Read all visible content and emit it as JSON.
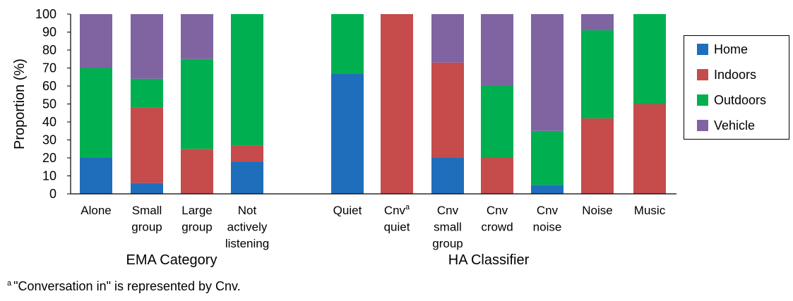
{
  "colors": {
    "Home": "#1f6ebc",
    "Indoors": "#c64b4b",
    "Outdoors": "#00b050",
    "Vehicle": "#8064a2"
  },
  "footnote": {
    "marker": "a",
    "text": "\"Conversation in\" is represented by Cnv."
  },
  "chart_data": {
    "type": "bar",
    "stacked": true,
    "ylabel": "Proportion (%)",
    "ylim": [
      0,
      100
    ],
    "yticks": [
      0,
      10,
      20,
      30,
      40,
      50,
      60,
      70,
      80,
      90,
      100
    ],
    "grid": false,
    "legend_position": "right",
    "legend": [
      "Home",
      "Indoors",
      "Outdoors",
      "Vehicle"
    ],
    "groups": [
      {
        "label": "EMA Category",
        "categories": [
          "Alone",
          "Small group",
          "Large group",
          "Not actively listening"
        ]
      },
      {
        "label": "HA Classifier",
        "categories": [
          "Quiet",
          "Cnv quiet",
          "Cnv small group",
          "Cnv crowd",
          "Cnv noise",
          "Noise",
          "Music"
        ]
      }
    ],
    "categories": [
      "Alone",
      "Small group",
      "Large group",
      "Not actively listening",
      "Quiet",
      "Cnv quiet",
      "Cnv small group",
      "Cnv crowd",
      "Cnv noise",
      "Noise",
      "Music"
    ],
    "category_label_lines": [
      [
        "Alone"
      ],
      [
        "Small",
        "group"
      ],
      [
        "Large",
        "group"
      ],
      [
        "Not",
        "actively",
        "listening"
      ],
      [
        "Quiet"
      ],
      [
        "Cnv",
        "quiet"
      ],
      [
        "Cnv",
        "small",
        "group"
      ],
      [
        "Cnv",
        "crowd"
      ],
      [
        "Cnv",
        "noise"
      ],
      [
        "Noise"
      ],
      [
        "Music"
      ]
    ],
    "category_superscript": {
      "Cnv quiet": "a"
    },
    "series": [
      {
        "name": "Home",
        "values": [
          20,
          6,
          0,
          18,
          67,
          0,
          20,
          0,
          5,
          0,
          0
        ]
      },
      {
        "name": "Indoors",
        "values": [
          0,
          42,
          25,
          9,
          0,
          100,
          53,
          20,
          0,
          42,
          50
        ]
      },
      {
        "name": "Outdoors",
        "values": [
          50,
          16,
          50,
          73,
          33,
          0,
          0,
          40,
          30,
          49,
          50
        ]
      },
      {
        "name": "Vehicle",
        "values": [
          30,
          36,
          25,
          0,
          0,
          0,
          27,
          40,
          65,
          9,
          0
        ]
      }
    ]
  }
}
